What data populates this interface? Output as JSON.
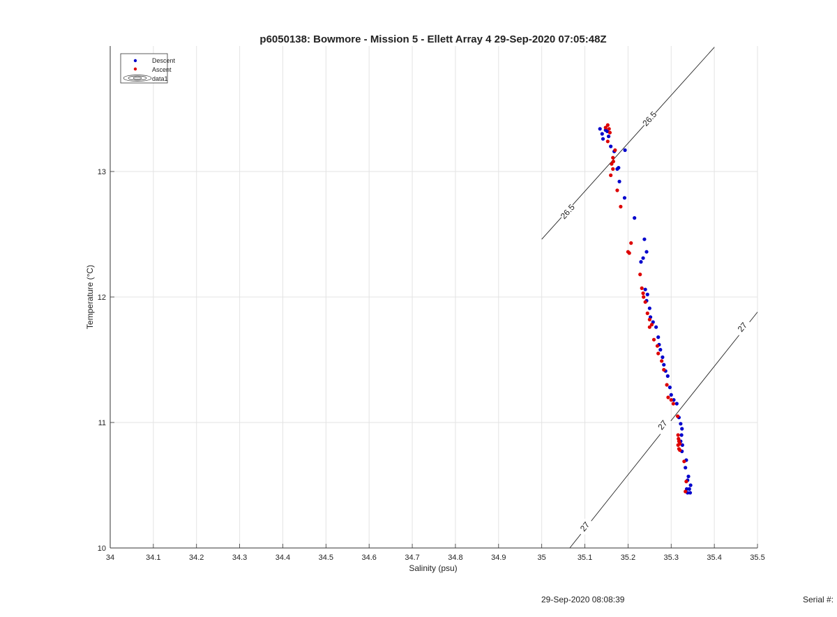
{
  "chart_data": {
    "type": "scatter",
    "title": "p6050138: Bowmore - Mission 5 - Ellett Array 4 29-Sep-2020 07:05:48Z",
    "xlabel": "Salinity (psu)",
    "ylabel": "Temperature (°C)",
    "xlim": [
      34,
      35.5
    ],
    "ylim": [
      10,
      14
    ],
    "x_ticks": [
      34,
      34.1,
      34.2,
      34.3,
      34.4,
      34.5,
      34.6,
      34.7,
      34.8,
      34.9,
      35,
      35.1,
      35.2,
      35.3,
      35.4,
      35.5
    ],
    "x_tick_labels": [
      "34",
      "34.1",
      "34.2",
      "34.3",
      "34.4",
      "34.5",
      "34.6",
      "34.7",
      "34.8",
      "34.9",
      "35",
      "35.1",
      "35.2",
      "35.3",
      "35.4",
      "35.5"
    ],
    "y_ticks": [
      10,
      11,
      12,
      13
    ],
    "y_tick_labels": [
      "10",
      "11",
      "12",
      "13"
    ],
    "grid": true,
    "legend": {
      "placement": "top-left",
      "entries": [
        {
          "label": "Descent",
          "marker": "dot",
          "color": "#0000cc"
        },
        {
          "label": "Ascent",
          "marker": "dot",
          "color": "#dd0000"
        },
        {
          "label": "data1",
          "marker": "contour"
        }
      ]
    },
    "series": [
      {
        "name": "Descent",
        "color": "#0000cc",
        "points": [
          [
            35.135,
            13.34
          ],
          [
            35.14,
            13.3
          ],
          [
            35.142,
            13.26
          ],
          [
            35.148,
            13.33
          ],
          [
            35.152,
            13.32
          ],
          [
            35.155,
            13.28
          ],
          [
            35.16,
            13.2
          ],
          [
            35.168,
            13.16
          ],
          [
            35.175,
            13.02
          ],
          [
            35.178,
            13.03
          ],
          [
            35.18,
            12.92
          ],
          [
            35.192,
            12.79
          ],
          [
            35.193,
            13.17
          ],
          [
            35.215,
            12.63
          ],
          [
            35.23,
            12.28
          ],
          [
            35.235,
            12.31
          ],
          [
            35.238,
            12.46
          ],
          [
            35.243,
            12.36
          ],
          [
            35.24,
            12.06
          ],
          [
            35.245,
            12.02
          ],
          [
            35.243,
            11.97
          ],
          [
            35.25,
            11.91
          ],
          [
            35.252,
            11.84
          ],
          [
            35.258,
            11.8
          ],
          [
            35.265,
            11.76
          ],
          [
            35.27,
            11.68
          ],
          [
            35.272,
            11.62
          ],
          [
            35.275,
            11.58
          ],
          [
            35.28,
            11.52
          ],
          [
            35.283,
            11.46
          ],
          [
            35.287,
            11.41
          ],
          [
            35.292,
            11.37
          ],
          [
            35.297,
            11.28
          ],
          [
            35.3,
            11.22
          ],
          [
            35.306,
            11.18
          ],
          [
            35.313,
            11.15
          ],
          [
            35.318,
            11.04
          ],
          [
            35.322,
            10.99
          ],
          [
            35.325,
            10.95
          ],
          [
            35.324,
            10.9
          ],
          [
            35.322,
            10.85
          ],
          [
            35.326,
            10.82
          ],
          [
            35.325,
            10.77
          ],
          [
            35.335,
            10.7
          ],
          [
            35.333,
            10.64
          ],
          [
            35.34,
            10.57
          ],
          [
            35.338,
            10.54
          ],
          [
            35.345,
            10.5
          ],
          [
            35.342,
            10.47
          ],
          [
            35.338,
            10.44
          ],
          [
            35.344,
            10.44
          ],
          [
            35.336,
            10.47
          ]
        ]
      },
      {
        "name": "Ascent",
        "color": "#dd0000",
        "points": [
          [
            35.148,
            13.35
          ],
          [
            35.153,
            13.37
          ],
          [
            35.156,
            13.34
          ],
          [
            35.158,
            13.31
          ],
          [
            35.153,
            13.24
          ],
          [
            35.165,
            13.11
          ],
          [
            35.17,
            13.17
          ],
          [
            35.162,
            13.06
          ],
          [
            35.166,
            13.08
          ],
          [
            35.165,
            13.02
          ],
          [
            35.16,
            12.97
          ],
          [
            35.175,
            12.85
          ],
          [
            35.183,
            12.72
          ],
          [
            35.2,
            12.36
          ],
          [
            35.203,
            12.35
          ],
          [
            35.207,
            12.43
          ],
          [
            35.228,
            12.18
          ],
          [
            35.232,
            12.07
          ],
          [
            35.235,
            12.03
          ],
          [
            35.236,
            12.0
          ],
          [
            35.24,
            11.96
          ],
          [
            35.245,
            11.87
          ],
          [
            35.25,
            11.82
          ],
          [
            35.255,
            11.78
          ],
          [
            35.25,
            11.76
          ],
          [
            35.26,
            11.66
          ],
          [
            35.268,
            11.61
          ],
          [
            35.27,
            11.55
          ],
          [
            35.278,
            11.49
          ],
          [
            35.283,
            11.42
          ],
          [
            35.29,
            11.3
          ],
          [
            35.293,
            11.2
          ],
          [
            35.3,
            11.18
          ],
          [
            35.305,
            11.15
          ],
          [
            35.315,
            11.05
          ],
          [
            35.316,
            10.9
          ],
          [
            35.317,
            10.87
          ],
          [
            35.318,
            10.85
          ],
          [
            35.32,
            10.83
          ],
          [
            35.318,
            10.79
          ],
          [
            35.32,
            10.78
          ],
          [
            35.316,
            10.82
          ],
          [
            35.33,
            10.69
          ],
          [
            35.335,
            10.53
          ],
          [
            35.333,
            10.45
          ]
        ]
      }
    ],
    "density_contours": [
      {
        "label": "26.5",
        "points": [
          [
            35.0,
            12.46
          ],
          [
            35.4,
            13.99
          ]
        ],
        "label_positions": [
          [
            35.06,
            12.68
          ],
          [
            35.25,
            13.42
          ]
        ]
      },
      {
        "label": "27",
        "points": [
          [
            35.065,
            10.0
          ],
          [
            35.5,
            11.88
          ]
        ],
        "label_positions": [
          [
            35.1,
            10.17
          ],
          [
            35.28,
            10.98
          ],
          [
            35.465,
            11.76
          ]
        ]
      }
    ]
  },
  "footer": {
    "timestamp": "29-Sep-2020 08:08:39",
    "serial": "Serial #:"
  }
}
